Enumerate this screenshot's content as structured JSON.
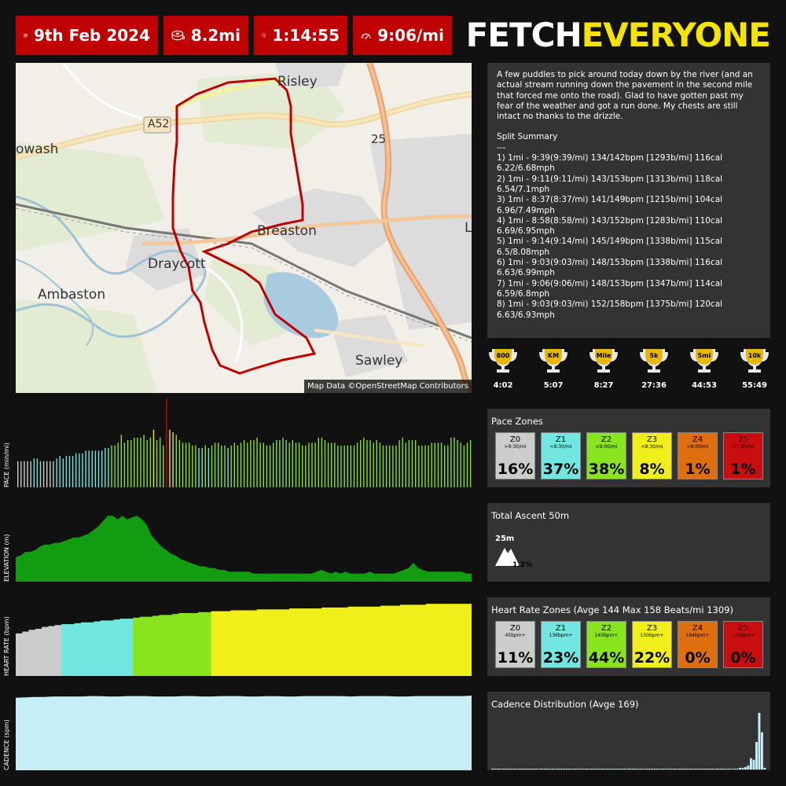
{
  "stats": {
    "date": "9th Feb 2024",
    "distance": "8.2mi",
    "duration": "1:14:55",
    "pace": "9:06/mi"
  },
  "logo": {
    "part1": "FETCH",
    "part2": "EVERYONE"
  },
  "map": {
    "labels": {
      "risley": "Risley",
      "a52": "A52",
      "owash": "owash",
      "j25": "25",
      "breaston": "Breaston",
      "draycott": "Draycott",
      "ambaston": "Ambaston",
      "sawley": "Sawley",
      "l": "L"
    },
    "attribution": "Map Data ©OpenStreetMap Contributors"
  },
  "notes": {
    "text": "A few puddles to pick around today down by the river (and an actual stream running down the pavement in the second mile that forced me onto the road). Glad to have gotten past my fear of the weather and got a run done. My chests are still intact no thanks to the drizzle.",
    "split_title": "Split Summary",
    "split_rule": "---",
    "splits": [
      "1) 1mi - 9:39(9:39/mi) 134/142bpm [1293b/mi] 116cal 6.22/6.68mph",
      "2) 1mi - 9:11(9:11/mi) 143/153bpm [1313b/mi] 118cal 6.54/7.1mph",
      "3) 1mi - 8:37(8:37/mi) 141/149bpm [1215b/mi] 104cal 6.96/7.49mph",
      "4) 1mi - 8:58(8:58/mi) 143/152bpm [1283b/mi] 110cal 6.69/6.95mph",
      "5) 1mi - 9:14(9:14/mi) 145/149bpm [1338b/mi] 115cal 6.5/8.08mph",
      "6) 1mi - 9:03(9:03/mi) 148/153bpm [1338b/mi] 116cal 6.63/6.99mph",
      "7) 1mi - 9:06(9:06/mi) 148/153bpm [1347b/mi] 114cal 6.59/6.8mph",
      "8) 1mi - 9:03(9:03/mi) 152/158bpm [1375b/mi] 120cal 6.63/6.93mph"
    ]
  },
  "trophies": [
    {
      "label": "800",
      "time": "4:02"
    },
    {
      "label": "KM",
      "time": "5:07"
    },
    {
      "label": "Mile",
      "time": "8:27"
    },
    {
      "label": "5k",
      "time": "27:36"
    },
    {
      "label": "5mi",
      "time": "44:53"
    },
    {
      "label": "10k",
      "time": "55:49"
    }
  ],
  "chart_axis_labels": {
    "pace": "PACE (min/mi)",
    "elevation": "ELEVATION (m)",
    "heart_rate": "HEART RATE (bpm)",
    "cadence": "CADENCE (spm)"
  },
  "pace_zones": {
    "title": "Pace Zones",
    "zones": [
      {
        "name": "Z0",
        "sub": ">9:30/mi",
        "pct": "16%",
        "color": "#cccccc"
      },
      {
        "name": "Z1",
        "sub": "<9:30/mi",
        "pct": "37%",
        "color": "#72e6e0"
      },
      {
        "name": "Z2",
        "sub": "<9:00/mi",
        "pct": "38%",
        "color": "#88e41c"
      },
      {
        "name": "Z3",
        "sub": "<8:30/mi",
        "pct": "8%",
        "color": "#f0ef1a"
      },
      {
        "name": "Z4",
        "sub": "<8:00/mi",
        "pct": "1%",
        "color": "#de6e0e"
      },
      {
        "name": "Z5",
        "sub": "<7:30/mi",
        "pct": "1%",
        "color": "#c80e0e"
      }
    ]
  },
  "ascent": {
    "title": "Total Ascent 50m",
    "peak": "25m",
    "grade": "1.2%"
  },
  "hr_zones": {
    "title": "Heart Rate Zones (Avge 144 Max 158 Beats/mi 1309)",
    "zones": [
      {
        "name": "Z0",
        "sub": "45bpm+",
        "pct": "11%",
        "color": "#cccccc"
      },
      {
        "name": "Z1",
        "sub": "136bpm+",
        "pct": "23%",
        "color": "#72e6e0"
      },
      {
        "name": "Z2",
        "sub": "143bpm+",
        "pct": "44%",
        "color": "#88e41c"
      },
      {
        "name": "Z3",
        "sub": "150bpm+",
        "pct": "22%",
        "color": "#f0ef1a"
      },
      {
        "name": "Z4",
        "sub": "164bpm+",
        "pct": "0%",
        "color": "#de6e0e"
      },
      {
        "name": "Z5",
        "sub": "171bpm+",
        "pct": "0%",
        "color": "#c80e0e"
      }
    ]
  },
  "cadence": {
    "title": "Cadence Distribution (Avge 169)"
  },
  "colors": {
    "stat_bg": "#c00000",
    "route": "#c00000",
    "elevation": "#119c11",
    "cadence": "#c6eef6",
    "logo_accent": "#f5e400"
  },
  "chart_data": [
    {
      "type": "bar",
      "name": "pace",
      "ylabel": "PACE (min/mi)",
      "values": [
        9.6,
        9.6,
        9.6,
        9.6,
        9.6,
        9.5,
        9.5,
        9.6,
        9.6,
        9.6,
        9.6,
        9.6,
        9.5,
        9.4,
        9.5,
        9.4,
        9.4,
        9.4,
        9.3,
        9.3,
        9.3,
        9.2,
        9.2,
        9.2,
        9.2,
        9.2,
        9.2,
        9.1,
        9.1,
        9.0,
        9.0,
        8.9,
        8.6,
        8.9,
        8.8,
        8.8,
        8.7,
        8.7,
        8.7,
        8.6,
        8.8,
        8.7,
        8.4,
        8.8,
        8.7,
        9.0,
        7.2,
        8.4,
        8.5,
        8.6,
        8.8,
        8.9,
        8.9,
        8.9,
        9.0,
        9.0,
        9.1,
        9.1,
        9.0,
        9.1,
        9.0,
        8.9,
        8.9,
        9.0,
        9.0,
        9.1,
        9.0,
        8.9,
        9.0,
        8.9,
        8.8,
        8.9,
        8.8,
        8.8,
        8.7,
        8.9,
        8.9,
        9.0,
        9.0,
        8.9,
        8.8,
        8.8,
        8.7,
        8.8,
        8.9,
        8.8,
        8.9,
        8.9,
        9.0,
        9.0,
        8.9,
        8.9,
        8.9,
        8.7,
        8.7,
        8.8,
        8.9,
        8.9,
        8.9,
        9.0,
        9.0,
        9.0,
        9.0,
        9.0,
        9.0,
        8.9,
        8.8,
        8.7,
        8.8,
        8.8,
        8.9,
        8.8,
        8.9,
        9.0,
        9.0,
        9.0,
        9.0,
        9.0,
        8.8,
        8.7,
        8.9,
        8.8,
        8.8,
        8.8,
        9.0,
        9.0,
        9.0,
        9.0,
        8.9,
        8.9,
        8.9,
        8.9,
        9.0,
        9.0,
        8.7,
        8.7,
        8.8,
        8.9,
        9.0,
        8.9,
        8.8
      ]
    },
    {
      "type": "area",
      "name": "elevation",
      "ylabel": "ELEVATION (m)",
      "values": [
        10,
        11,
        13,
        13,
        14,
        16,
        17,
        17,
        18,
        18,
        19,
        20,
        21,
        21,
        22,
        23,
        25,
        27,
        30,
        33,
        33,
        31,
        33,
        31,
        32,
        33,
        31,
        28,
        22,
        19,
        16,
        14,
        12,
        11,
        9,
        8,
        7,
        6,
        5,
        5,
        4,
        4,
        3,
        3,
        2,
        2,
        2,
        2,
        2,
        1,
        1,
        1,
        1,
        1,
        1,
        1,
        1,
        1,
        1,
        1,
        1,
        1,
        2,
        3,
        2,
        1,
        2,
        1,
        2,
        1,
        1,
        1,
        1,
        2,
        1,
        1,
        1,
        1,
        1,
        2,
        3,
        4,
        7,
        4,
        3,
        2,
        2,
        2,
        2,
        2,
        2,
        2,
        2,
        1,
        1
      ]
    },
    {
      "type": "bar",
      "name": "heart_rate",
      "ylabel": "HEART RATE (bpm)",
      "values": [
        126,
        128,
        130,
        131,
        133,
        134,
        135,
        136,
        136,
        137,
        138,
        138,
        139,
        140,
        140,
        141,
        142,
        142,
        143,
        144,
        144,
        145,
        146,
        146,
        147,
        148,
        148,
        148,
        149,
        149,
        150,
        150,
        150,
        151,
        151,
        151,
        151,
        152,
        152,
        152,
        152,
        152,
        153,
        153,
        153,
        153,
        153,
        154,
        154,
        154,
        154,
        155,
        155,
        155,
        155,
        155,
        156,
        156,
        156,
        157,
        157,
        157,
        157,
        158,
        158,
        158,
        158,
        158,
        158,
        158
      ]
    },
    {
      "type": "area",
      "name": "cadence",
      "ylabel": "CADENCE (spm)",
      "values": [
        166,
        167,
        168,
        168,
        169,
        169,
        169,
        169,
        170,
        170,
        169,
        169,
        170,
        170,
        170,
        169,
        169,
        169,
        170,
        170,
        169,
        169,
        170,
        170,
        170,
        169,
        169,
        170,
        170,
        169,
        169,
        170,
        170,
        170,
        170,
        170,
        169,
        170,
        170,
        170,
        170,
        169,
        169,
        170,
        170,
        170,
        170,
        170,
        170,
        171
      ]
    },
    {
      "type": "bar",
      "name": "cadence_distribution",
      "title": "Cadence Distribution (Avge 169)",
      "values": [
        0,
        0,
        0,
        0,
        0,
        0,
        0,
        0,
        0,
        0,
        0,
        0,
        0,
        0,
        0,
        0,
        0,
        0,
        0,
        0,
        0,
        0,
        0,
        0,
        0,
        0,
        0,
        0,
        0,
        0,
        0,
        0,
        0,
        0,
        0,
        0,
        0,
        0,
        0,
        0,
        0,
        0,
        0,
        0,
        0,
        0,
        0,
        0,
        0,
        0,
        0,
        0,
        0,
        0,
        0,
        0,
        0,
        0,
        0,
        0,
        0,
        0,
        0,
        0,
        0,
        0,
        0,
        0,
        0,
        0,
        0,
        0,
        0,
        0,
        0,
        0,
        0,
        0,
        0,
        0,
        0,
        0,
        0,
        0,
        0,
        0,
        1,
        1,
        1,
        1,
        2,
        2,
        3,
        5,
        14,
        12,
        34,
        70,
        46,
        2
      ]
    }
  ]
}
